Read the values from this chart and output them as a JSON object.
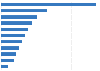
{
  "values": [
    68,
    33,
    26,
    22,
    19,
    17,
    15,
    13,
    11,
    9,
    5
  ],
  "bar_color": "#3679c0",
  "background_color": "#ffffff",
  "grid_color": "#e8e8e8",
  "figsize": [
    1.0,
    0.71
  ],
  "dpi": 100,
  "bar_height": 0.55
}
